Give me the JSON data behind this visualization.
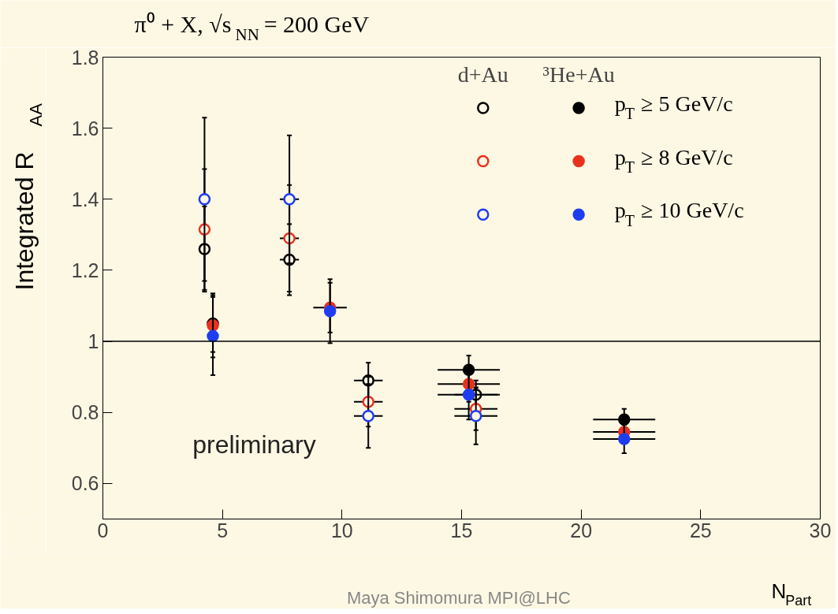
{
  "chart_data": {
    "type": "scatter",
    "title": "π⁰ + X, √s$_{NN}$ = 200 GeV",
    "xlabel": "N$_{Part}$",
    "ylabel": "Integrated R$_{AA}$",
    "xlim": [
      0,
      30
    ],
    "ylim": [
      0.5,
      1.8
    ],
    "xticks": [
      0,
      5,
      10,
      15,
      20,
      25,
      30
    ],
    "yticks": [
      0.6,
      0.8,
      {
        "value": 1,
        "label": "1"
      },
      1.2,
      1.4,
      1.6,
      1.8
    ],
    "grid": false,
    "legend": "top right",
    "marker": "circle",
    "annotations": [
      "d+Au",
      "³He+Au",
      "preliminary",
      "Maya Shimomura MPI@LHC"
    ],
    "ref_lines": [
      {
        "axis": "y",
        "value": 1,
        "label": null,
        "color": "#000000"
      }
    ],
    "series": [
      {
        "color": "#000000",
        "x": [
          4.25,
          7.8,
          11.1,
          15.6
        ],
        "values": [
          1.26,
          1.23,
          0.89,
          0.85
        ],
        "errors": [
          0.12,
          0.1,
          0.05,
          0.04
        ],
        "xerrors": [
          null,
          0.4,
          0.6,
          0.9
        ]
      },
      {
        "color": "#e8321e",
        "x": [
          4.25,
          7.8,
          11.1,
          15.6
        ],
        "values": [
          1.315,
          1.29,
          0.83,
          0.81
        ],
        "errors": [
          0.17,
          0.15,
          0.07,
          0.06
        ],
        "xerrors": [
          null,
          0.4,
          0.6,
          0.9
        ]
      },
      {
        "color": "#1f3df0",
        "x": [
          4.25,
          7.8,
          11.1,
          15.6
        ],
        "values": [
          1.4,
          1.4,
          0.79,
          0.79
        ],
        "errors": [
          0.23,
          0.18,
          0.09,
          0.08
        ],
        "xerrors": [
          null,
          0.4,
          0.6,
          0.9
        ]
      },
      {
        "name": "p$_{T}$ ≥ 5 GeV/c",
        "color": "#000000",
        "x": [
          4.6,
          9.5,
          15.3,
          21.8
        ],
        "values": [
          1.05,
          null,
          0.92,
          0.78
        ],
        "errors": [
          0.08,
          null,
          0.04,
          0.03
        ],
        "xerrors": [
          null,
          null,
          1.3,
          1.3
        ]
      },
      {
        "name": "p$_{T}$ ≥ 8 GeV/c",
        "color": "#e8321e",
        "x": [
          4.6,
          9.5,
          15.3,
          21.8
        ],
        "values": [
          1.045,
          1.095,
          0.88,
          0.745
        ],
        "errors": [
          0.09,
          0.07,
          0.05,
          0.03
        ],
        "xerrors": [
          null,
          0.7,
          1.3,
          1.3
        ]
      },
      {
        "name": "p$_{T}$ ≥ 10 GeV/c",
        "color": "#1f3df0",
        "x": [
          4.6,
          9.5,
          15.3,
          21.8
        ],
        "values": [
          1.015,
          1.085,
          0.85,
          0.725
        ],
        "errors": [
          0.11,
          0.09,
          0.07,
          0.04
        ],
        "xerrors": [
          null,
          null,
          1.3,
          1.3
        ]
      }
    ]
  }
}
